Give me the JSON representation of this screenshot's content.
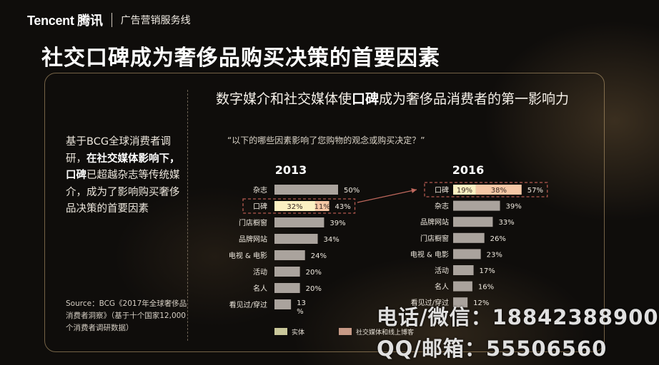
{
  "header": {
    "logo": "Tencent 腾讯",
    "tagline": "广告营销服务线"
  },
  "title": "社交口碑成为奢侈品购买决策的首要因素",
  "subtitle": {
    "pre": "数字媒介和社交媒体使",
    "bold": "口碑",
    "post": "成为奢侈品消费者的第一影响力"
  },
  "left_text": {
    "p1": "基于BCG全球消费者调研，",
    "b1": "在社交媒体影响下，",
    "b2": "口碑",
    "p2": "已超越杂志等传统媒介，成为了影响购买奢侈品决策的首要因素"
  },
  "source": "Source：BCG《2017年全球奢侈品消费者洞察》（基于十个国家12,000个消费者调研数据）",
  "question": "“以下的哪些因素影响了您购物的观念或购买决定？”",
  "watermark": {
    "line1": "电话/微信：18842388900",
    "line2": "QQ/邮箱：55506560"
  },
  "colors": {
    "bar_gray": "#aaa39d",
    "seg_light": "#fbf1c2",
    "seg_peach": "#f5c7a5",
    "highlight_border": "#b45a50",
    "arrow": "#c0685d"
  },
  "chart_data": [
    {
      "type": "bar",
      "orientation": "horizontal",
      "title": "2013",
      "categories": [
        "杂志",
        "口碑",
        "门店橱窗",
        "品牌网站",
        "电视 & 电影",
        "活动",
        "名人",
        "看见过/穿过"
      ],
      "values": [
        50,
        43,
        39,
        34,
        24,
        20,
        20,
        13
      ],
      "value_labels": [
        "50%",
        "43%",
        "39%",
        "34%",
        "24%",
        "20%",
        "20%",
        "13%"
      ],
      "highlight": {
        "category": "口碑",
        "segments": [
          {
            "series": "实体",
            "value": 32,
            "label": "32%"
          },
          {
            "series": "社交媒体和线上博客",
            "value": 11,
            "label": "11%"
          }
        ]
      }
    },
    {
      "type": "bar",
      "orientation": "horizontal",
      "title": "2016",
      "categories": [
        "口碑",
        "杂志",
        "品牌网站",
        "门店橱窗",
        "电视 & 电影",
        "活动",
        "名人",
        "看见过/穿过"
      ],
      "values": [
        57,
        39,
        33,
        26,
        23,
        17,
        16,
        12
      ],
      "value_labels": [
        "57%",
        "39%",
        "33%",
        "26%",
        "23%",
        "17%",
        "16%",
        "12%"
      ],
      "highlight": {
        "category": "口碑",
        "segments": [
          {
            "series": "实体",
            "value": 19,
            "label": "19%"
          },
          {
            "series": "社交媒体和线上博客",
            "value": 38,
            "label": "38%"
          }
        ]
      }
    }
  ],
  "legend": [
    {
      "label": "实体",
      "color": "#c9c79a"
    },
    {
      "label": "社交媒体和线上博客",
      "color": "#c79a86"
    }
  ]
}
